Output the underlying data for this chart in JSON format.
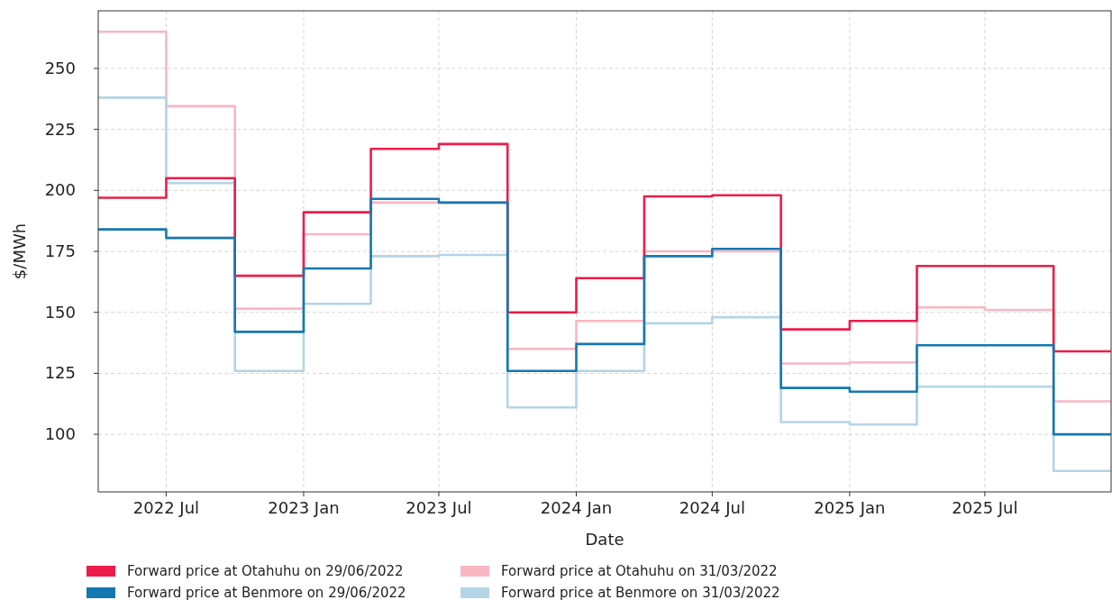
{
  "chart_data": {
    "type": "step",
    "xlabel": "Date",
    "ylabel": "$/MWh",
    "x": [
      "2022-04-01",
      "2022-07-01",
      "2022-10-01",
      "2023-01-01",
      "2023-04-01",
      "2023-07-01",
      "2023-10-01",
      "2024-01-01",
      "2024-04-01",
      "2024-07-01",
      "2024-10-01",
      "2025-01-01",
      "2025-04-01",
      "2025-07-01",
      "2025-10-01",
      "2025-12-17"
    ],
    "series": [
      {
        "name": "Forward price at Otahuhu on 31/03/2022",
        "color": "#f9b6c3",
        "values": [
          265,
          234.5,
          151.5,
          182,
          195,
          195,
          135,
          146.5,
          175,
          175,
          129,
          129.5,
          152,
          151,
          113.5,
          113.5
        ]
      },
      {
        "name": "Forward price at Benmore on 31/03/2022",
        "color": "#b3d5e5",
        "values": [
          238,
          203,
          126,
          153.5,
          173,
          173.5,
          111,
          126,
          145.5,
          148,
          105,
          104,
          119.5,
          119.5,
          85,
          85
        ]
      },
      {
        "name": "Forward price at Otahuhu on 29/06/2022",
        "color": "#ee1c4a",
        "values": [
          197,
          205,
          165,
          191,
          217,
          219,
          150,
          164,
          197.5,
          198,
          143,
          146.5,
          169,
          169,
          134,
          134
        ]
      },
      {
        "name": "Forward price at Benmore on 29/06/2022",
        "color": "#1478b0",
        "values": [
          184,
          180.5,
          142,
          168,
          196.5,
          195,
          126,
          137,
          173,
          176,
          119,
          117.5,
          136.5,
          136.5,
          100,
          100
        ]
      }
    ],
    "xlim": [
      "2022-04-01",
      "2025-12-17"
    ],
    "xticks": [
      {
        "value": "2022-07-01",
        "label": "2022 Jul"
      },
      {
        "value": "2023-01-01",
        "label": "2023 Jan"
      },
      {
        "value": "2023-07-01",
        "label": "2023 Jul"
      },
      {
        "value": "2024-01-01",
        "label": "2024 Jan"
      },
      {
        "value": "2024-07-01",
        "label": "2024 Jul"
      },
      {
        "value": "2025-01-01",
        "label": "2025 Jan"
      },
      {
        "value": "2025-07-01",
        "label": "2025 Jul"
      }
    ],
    "ylim": [
      76.4,
      273.6
    ],
    "yticks": [
      100,
      125,
      150,
      175,
      200,
      225,
      250
    ],
    "grid": true,
    "legend": "bottom",
    "line_style": "solid",
    "marker": "none"
  }
}
